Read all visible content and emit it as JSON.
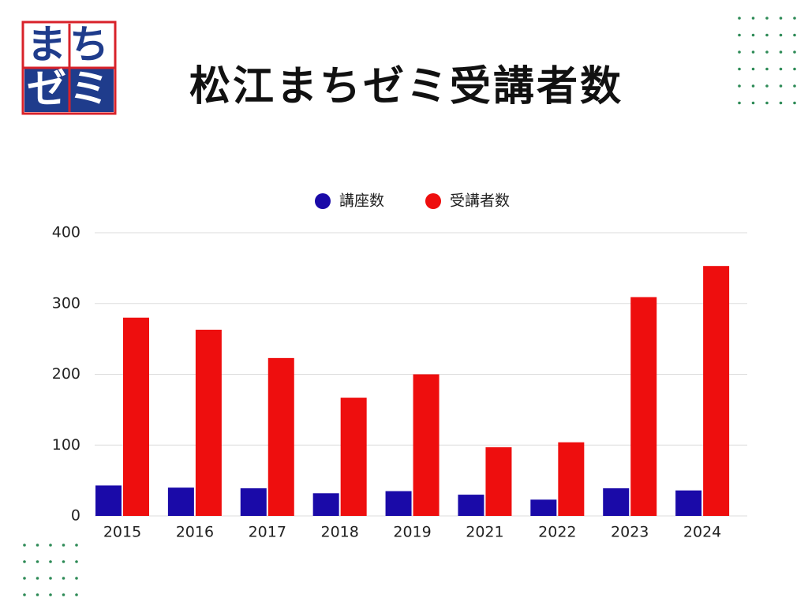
{
  "logo": {
    "line1": "まち",
    "line2": "ゼミ"
  },
  "chart_data": {
    "type": "bar",
    "title": "松江まちゼミ受講者数",
    "categories": [
      "2015",
      "2016",
      "2017",
      "2018",
      "2019",
      "2021",
      "2022",
      "2023",
      "2024"
    ],
    "series": [
      {
        "name": "講座数",
        "color": "#1a0aa8",
        "values": [
          43,
          40,
          39,
          32,
          35,
          30,
          23,
          39,
          36
        ]
      },
      {
        "name": "受講者数",
        "color": "#ee0e0e",
        "values": [
          280,
          263,
          223,
          167,
          200,
          97,
          104,
          309,
          353
        ]
      }
    ],
    "ylim": [
      0,
      400
    ],
    "yticks": [
      0,
      100,
      200,
      300,
      400
    ],
    "grid": true,
    "legend": "top"
  }
}
